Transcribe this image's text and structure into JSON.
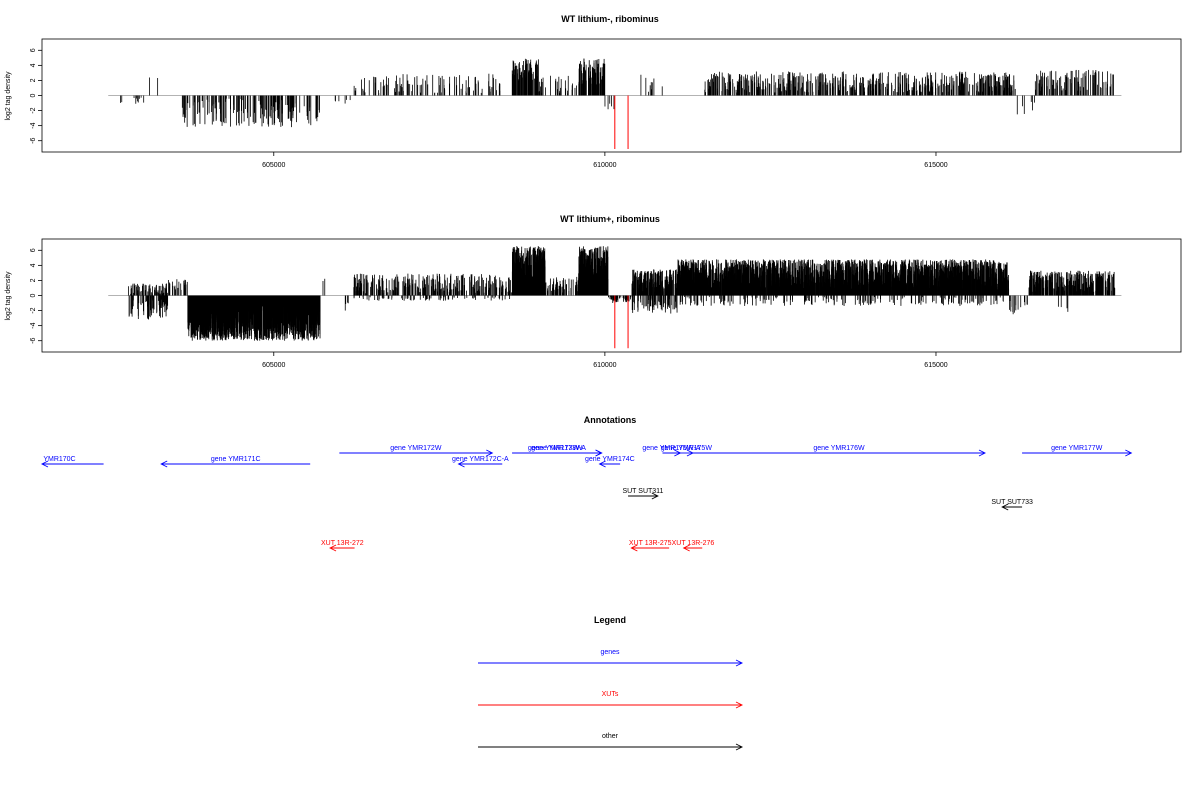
{
  "chart_data": [
    {
      "type": "bar",
      "title": "WT lithium-, ribominus",
      "ylabel": "log2 tag density",
      "xlabel": "",
      "xlim": [
        601500,
        618700
      ],
      "ylim": [
        -7.5,
        7.5
      ],
      "xticks": [
        605000,
        610000,
        615000
      ],
      "xtick_labels": [
        "605000",
        "610000",
        "615000"
      ],
      "yticks": [
        -6,
        -4,
        -2,
        0,
        2,
        4,
        6
      ],
      "ytick_labels": [
        "-6",
        "-4",
        "-2",
        "0",
        "2",
        "4",
        "6"
      ],
      "baseline": [
        602500,
        617800
      ],
      "highlight_color": "#ff0000",
      "bar_color": "#000000",
      "segments": [
        {
          "start": 602600,
          "end": 603100,
          "mean": -0.6,
          "amp": 0.5,
          "density": 0.02,
          "sign": -1
        },
        {
          "start": 603100,
          "end": 603300,
          "mean": 2.4,
          "amp": 0.3,
          "density": 0.01,
          "sign": 1
        },
        {
          "start": 603600,
          "end": 605700,
          "mean": -2.3,
          "amp": 1.9,
          "density": 0.08,
          "sign": -1
        },
        {
          "start": 605900,
          "end": 606200,
          "mean": -1.0,
          "amp": 0.5,
          "density": 0.02,
          "sign": -1
        },
        {
          "start": 606200,
          "end": 608500,
          "mean": 1.6,
          "amp": 1.3,
          "density": 0.045,
          "sign": 1
        },
        {
          "start": 608600,
          "end": 609000,
          "mean": 3.4,
          "amp": 1.5,
          "density": 0.22,
          "sign": 1
        },
        {
          "start": 609000,
          "end": 609600,
          "mean": 1.6,
          "amp": 1.3,
          "density": 0.05,
          "sign": 1
        },
        {
          "start": 609600,
          "end": 610000,
          "mean": 3.2,
          "amp": 1.8,
          "density": 0.2,
          "sign": 1
        },
        {
          "start": 610000,
          "end": 610150,
          "mean": -1.4,
          "amp": 0.6,
          "density": 0.03,
          "sign": -1
        },
        {
          "start": 610450,
          "end": 610900,
          "mean": 1.6,
          "amp": 1.3,
          "density": 0.02,
          "sign": 1
        },
        {
          "start": 611500,
          "end": 616200,
          "mean": 1.8,
          "amp": 1.4,
          "density": 0.11,
          "sign": 1
        },
        {
          "start": 616200,
          "end": 616500,
          "mean": -1.8,
          "amp": 1.0,
          "density": 0.02,
          "sign": -1
        },
        {
          "start": 616500,
          "end": 617700,
          "mean": 2.0,
          "amp": 1.4,
          "density": 0.08,
          "sign": 1
        }
      ],
      "highlight_bars": [
        {
          "x": 610150,
          "y": -7.1
        },
        {
          "x": 610350,
          "y": -7.1
        }
      ]
    },
    {
      "type": "bar",
      "title": "WT lithium+, ribominus",
      "ylabel": "log2 tag density",
      "xlabel": "",
      "xlim": [
        601500,
        618700
      ],
      "ylim": [
        -7.5,
        7.5
      ],
      "xticks": [
        605000,
        610000,
        615000
      ],
      "xtick_labels": [
        "605000",
        "610000",
        "615000"
      ],
      "yticks": [
        -6,
        -4,
        -2,
        0,
        2,
        4,
        6
      ],
      "ytick_labels": [
        "-6",
        "-4",
        "-2",
        "0",
        "2",
        "4",
        "6"
      ],
      "baseline": [
        602500,
        617800
      ],
      "highlight_color": "#ff0000",
      "bar_color": "#000000",
      "segments": [
        {
          "start": 602800,
          "end": 603400,
          "mean": 0.9,
          "amp": 0.7,
          "density": 0.12,
          "sign": 1
        },
        {
          "start": 602800,
          "end": 603400,
          "mean": -1.8,
          "amp": 1.4,
          "density": 0.12,
          "sign": -1
        },
        {
          "start": 603400,
          "end": 603700,
          "mean": 1.4,
          "amp": 0.8,
          "density": 0.08,
          "sign": 1
        },
        {
          "start": 603700,
          "end": 605700,
          "mean": -3.6,
          "amp": 2.4,
          "density": 0.6,
          "sign": -1
        },
        {
          "start": 605700,
          "end": 605800,
          "mean": 2.2,
          "amp": 0.5,
          "density": 0.02,
          "sign": 1
        },
        {
          "start": 606000,
          "end": 606200,
          "mean": -1.4,
          "amp": 0.6,
          "density": 0.02,
          "sign": -1
        },
        {
          "start": 606200,
          "end": 608600,
          "mean": 1.6,
          "amp": 1.3,
          "density": 0.12,
          "sign": 1
        },
        {
          "start": 606200,
          "end": 608600,
          "mean": -0.4,
          "amp": 0.3,
          "density": 0.03,
          "sign": -1
        },
        {
          "start": 608600,
          "end": 609100,
          "mean": 4.3,
          "amp": 2.3,
          "density": 0.5,
          "sign": 1
        },
        {
          "start": 609100,
          "end": 609600,
          "mean": 1.4,
          "amp": 1.1,
          "density": 0.12,
          "sign": 1
        },
        {
          "start": 609600,
          "end": 610050,
          "mean": 4.2,
          "amp": 2.4,
          "density": 0.5,
          "sign": 1
        },
        {
          "start": 610050,
          "end": 610400,
          "mean": -0.6,
          "amp": 0.4,
          "density": 0.15,
          "sign": -1
        },
        {
          "start": 610400,
          "end": 611100,
          "mean": 2.0,
          "amp": 1.5,
          "density": 0.3,
          "sign": 1
        },
        {
          "start": 610400,
          "end": 611100,
          "mean": -1.4,
          "amp": 1.0,
          "density": 0.1,
          "sign": -1
        },
        {
          "start": 611100,
          "end": 616100,
          "mean": 2.8,
          "amp": 2.0,
          "density": 0.5,
          "sign": 1
        },
        {
          "start": 611100,
          "end": 616100,
          "mean": -0.8,
          "amp": 0.6,
          "density": 0.04,
          "sign": -1
        },
        {
          "start": 616100,
          "end": 616400,
          "mean": -1.6,
          "amp": 0.9,
          "density": 0.05,
          "sign": -1
        },
        {
          "start": 616400,
          "end": 617700,
          "mean": 1.9,
          "amp": 1.4,
          "density": 0.25,
          "sign": 1
        },
        {
          "start": 616800,
          "end": 617000,
          "mean": -1.8,
          "amp": 0.6,
          "density": 0.02,
          "sign": -1
        }
      ],
      "highlight_bars": [
        {
          "x": 610150,
          "y": -7.0
        },
        {
          "x": 610350,
          "y": -7.0
        }
      ]
    }
  ],
  "annotations": {
    "title": "Annotations",
    "features": [
      {
        "label": "YMR170C",
        "start": 601500,
        "end": 602430,
        "strand": "-",
        "type": "gene",
        "row": 1,
        "label_at": 601520,
        "anchor": "start"
      },
      {
        "label": "gene YMR171C",
        "start": 603300,
        "end": 605550,
        "strand": "-",
        "type": "gene",
        "row": 1
      },
      {
        "label": "gene YMR172W",
        "start": 605990,
        "end": 608300,
        "strand": "+",
        "type": "gene",
        "row": 0
      },
      {
        "label": "gene YMR172C-A",
        "start": 607790,
        "end": 608450,
        "strand": "-",
        "type": "gene",
        "row": 1
      },
      {
        "label": "gene YMR173W-A",
        "start": 608600,
        "end": 609950,
        "strand": "+",
        "type": "gene",
        "row": 0
      },
      {
        "label": "gene YMR173W",
        "start": 608600,
        "end": 609950,
        "strand": "+",
        "type": "gene",
        "row": 0
      },
      {
        "label": "gene YMR174C",
        "start": 609920,
        "end": 610230,
        "strand": "-",
        "type": "gene",
        "row": 1
      },
      {
        "label": "gene YMR175W-A",
        "start": 610870,
        "end": 611140,
        "strand": "+",
        "type": "gene",
        "row": 0
      },
      {
        "label": "gene YMR175W",
        "start": 611130,
        "end": 611330,
        "strand": "+",
        "type": "gene",
        "row": 0
      },
      {
        "label": "gene YMR176W",
        "start": 611330,
        "end": 615740,
        "strand": "+",
        "type": "gene",
        "row": 0
      },
      {
        "label": "gene YMR177W",
        "start": 616300,
        "end": 617950,
        "strand": "+",
        "type": "gene",
        "row": 0
      },
      {
        "label": "SUT SUT311",
        "start": 610350,
        "end": 610800,
        "strand": "+",
        "type": "other",
        "row": 2
      },
      {
        "label": "SUT SUT733",
        "start": 616000,
        "end": 616300,
        "strand": "-",
        "type": "other",
        "row": 3
      },
      {
        "label": "XUT 13R-272",
        "start": 605850,
        "end": 606220,
        "strand": "-",
        "type": "xut",
        "row": 4
      },
      {
        "label": "XUT 13R-275",
        "start": 610400,
        "end": 610970,
        "strand": "-",
        "type": "xut",
        "row": 4
      },
      {
        "label": "XUT 13R-276",
        "start": 611190,
        "end": 611470,
        "strand": "-",
        "type": "xut",
        "row": 4
      }
    ]
  },
  "legend": {
    "title": "Legend",
    "items": [
      {
        "label": "genes",
        "type": "gene"
      },
      {
        "label": "XUTs",
        "type": "xut"
      },
      {
        "label": "other",
        "type": "other"
      }
    ]
  },
  "colors": {
    "gene": "#0000ff",
    "xut": "#ff0000",
    "other": "#000000",
    "baseline": "#9a9a9a"
  }
}
